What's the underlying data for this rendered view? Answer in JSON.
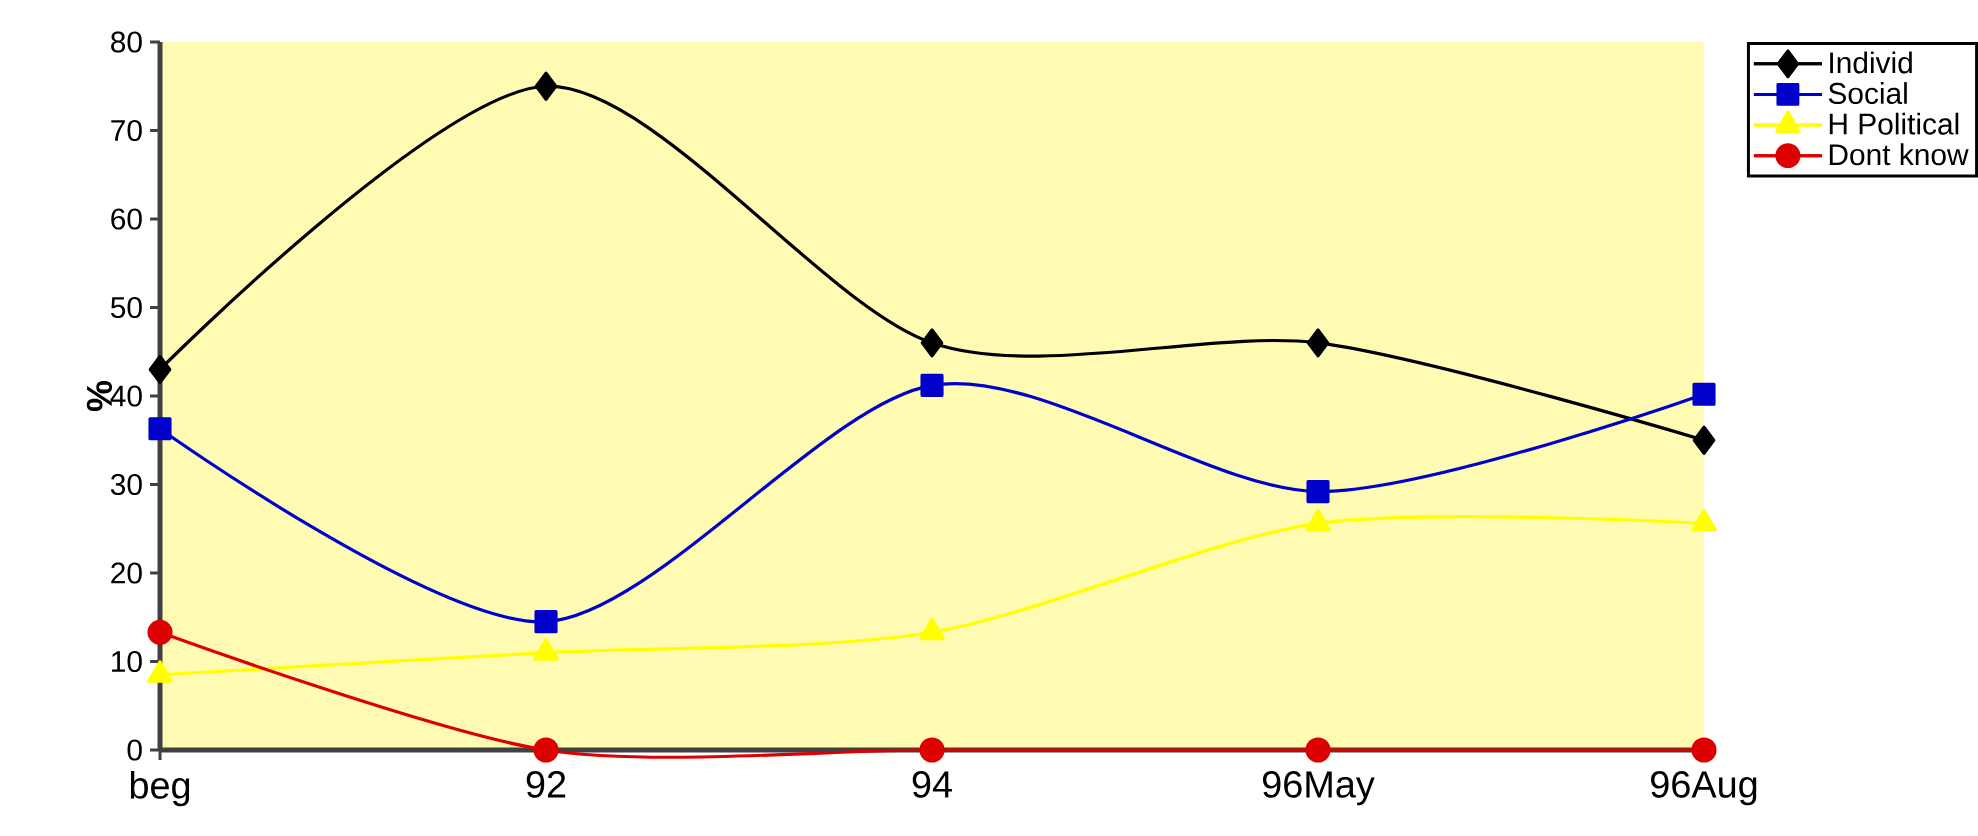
{
  "chart_data": {
    "type": "line",
    "ylabel": "%",
    "categories": [
      "beg",
      "92",
      "94",
      "96May",
      "96Aug"
    ],
    "series": [
      {
        "name": "Individ",
        "color": "#000000",
        "marker": "diamond",
        "values": [
          43,
          75,
          46,
          46,
          35
        ]
      },
      {
        "name": "Social",
        "color": "#0000cc",
        "marker": "square",
        "values": [
          36.3,
          14.5,
          41.2,
          29.2,
          40.2
        ]
      },
      {
        "name": "H Political",
        "color": "#ffff00",
        "marker": "triangle",
        "values": [
          8.5,
          11,
          13.3,
          25.6,
          25.6
        ]
      },
      {
        "name": "Dont know",
        "color": "#dd0000",
        "marker": "circle",
        "values": [
          13.3,
          0,
          0,
          0,
          0
        ]
      }
    ],
    "ylim": [
      0,
      80
    ],
    "yticks": [
      0,
      10,
      20,
      30,
      40,
      50,
      60,
      70,
      80
    ],
    "legend": "top right",
    "grid": false
  }
}
